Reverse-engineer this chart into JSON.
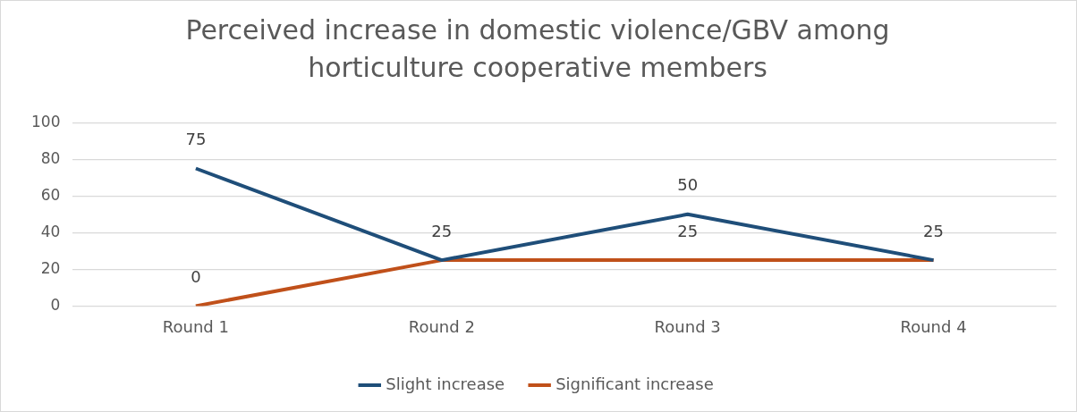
{
  "chart_data": {
    "type": "line",
    "title": "Perceived increase in domestic violence/GBV among horticulture cooperative members",
    "categories": [
      "Round 1",
      "Round 2",
      "Round 3",
      "Round 4"
    ],
    "series": [
      {
        "name": "Slight increase",
        "color": "#1f4e79",
        "values": [
          75,
          25,
          50,
          25
        ],
        "value_labels": [
          "75",
          null,
          "50",
          null
        ]
      },
      {
        "name": "Significant increase",
        "color": "#c0501a",
        "values": [
          0,
          25,
          25,
          25
        ],
        "value_labels": [
          "0",
          "25",
          "25",
          "25"
        ]
      }
    ],
    "ylim": [
      0,
      100
    ],
    "yticks": [
      0,
      20,
      40,
      60,
      80,
      100
    ],
    "grid": "y",
    "legend": "bottom",
    "marker": "none"
  }
}
